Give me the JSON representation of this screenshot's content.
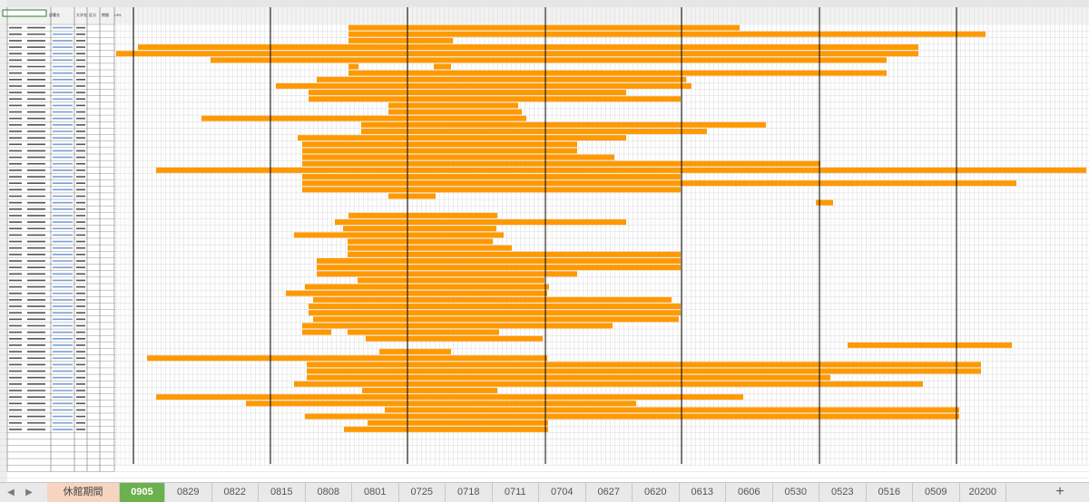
{
  "app": {
    "name": "spreadsheet"
  },
  "sheet": {
    "name_box": "",
    "header_labels": [
      "部署名",
      "大学名",
      "区分",
      "期間",
      "URL"
    ],
    "accent_color": "#ff9900",
    "grid_color": "#d9d9d9",
    "week_line_color": "#000000"
  },
  "tabs": {
    "nav_prev": "◀",
    "nav_next": "▶",
    "items": [
      {
        "label": "休館期間",
        "style": "orange"
      },
      {
        "label": "0905",
        "style": "active"
      },
      {
        "label": "0829",
        "style": "normal"
      },
      {
        "label": "0822",
        "style": "normal"
      },
      {
        "label": "0815",
        "style": "normal"
      },
      {
        "label": "0808",
        "style": "normal"
      },
      {
        "label": "0801",
        "style": "normal"
      },
      {
        "label": "0725",
        "style": "normal"
      },
      {
        "label": "0718",
        "style": "normal"
      },
      {
        "label": "0711",
        "style": "normal"
      },
      {
        "label": "0704",
        "style": "normal"
      },
      {
        "label": "0627",
        "style": "normal"
      },
      {
        "label": "0620",
        "style": "normal"
      },
      {
        "label": "0613",
        "style": "normal"
      },
      {
        "label": "0606",
        "style": "normal"
      },
      {
        "label": "0530",
        "style": "normal"
      },
      {
        "label": "0523",
        "style": "normal"
      },
      {
        "label": "0516",
        "style": "normal"
      },
      {
        "label": "0509",
        "style": "normal"
      },
      {
        "label": "20200",
        "style": "normal"
      }
    ],
    "add_label": "+"
  },
  "closure_rows": [
    [
      [
        384,
        815
      ]
    ],
    [
      [
        384,
        1086
      ]
    ],
    [
      [
        384,
        499
      ]
    ],
    [
      [
        152,
        1012
      ]
    ],
    [
      [
        128,
        1012
      ]
    ],
    [
      [
        232,
        977
      ]
    ],
    [
      [
        384,
        395
      ],
      [
        478,
        497
      ]
    ],
    [
      [
        384,
        977
      ]
    ],
    [
      [
        349,
        756
      ]
    ],
    [
      [
        304,
        762
      ]
    ],
    [
      [
        340,
        690
      ]
    ],
    [
      [
        340,
        750
      ]
    ],
    [
      [
        428,
        571
      ]
    ],
    [
      [
        428,
        575
      ]
    ],
    [
      [
        222,
        580
      ]
    ],
    [
      [
        398,
        844
      ]
    ],
    [
      [
        398,
        779
      ]
    ],
    [
      [
        328,
        690
      ]
    ],
    [
      [
        333,
        636
      ]
    ],
    [
      [
        333,
        636
      ]
    ],
    [
      [
        333,
        677
      ]
    ],
    [
      [
        333,
        904
      ]
    ],
    [
      [
        172,
        1197
      ]
    ],
    [
      [
        333,
        750
      ]
    ],
    [
      [
        333,
        1120
      ]
    ],
    [
      [
        333,
        750
      ]
    ],
    [
      [
        428,
        480
      ]
    ],
    [
      [
        899,
        918
      ]
    ],
    [],
    [
      [
        384,
        548
      ]
    ],
    [
      [
        369,
        690
      ]
    ],
    [
      [
        378,
        547
      ]
    ],
    [
      [
        324,
        555
      ]
    ],
    [
      [
        383,
        543
      ]
    ],
    [
      [
        383,
        564
      ]
    ],
    [
      [
        383,
        750
      ]
    ],
    [
      [
        349,
        750
      ]
    ],
    [
      [
        349,
        750
      ]
    ],
    [
      [
        349,
        636
      ]
    ],
    [
      [
        394,
        600
      ]
    ],
    [
      [
        336,
        605
      ]
    ],
    [
      [
        315,
        603
      ]
    ],
    [
      [
        345,
        740
      ]
    ],
    [
      [
        340,
        750
      ]
    ],
    [
      [
        340,
        750
      ]
    ],
    [
      [
        345,
        748
      ]
    ],
    [
      [
        333,
        675
      ]
    ],
    [
      [
        333,
        365
      ],
      [
        383,
        550
      ]
    ],
    [
      [
        403,
        598
      ]
    ],
    [
      [
        934,
        1115
      ]
    ],
    [
      [
        418,
        497
      ]
    ],
    [
      [
        162,
        603
      ]
    ],
    [
      [
        338,
        1081
      ]
    ],
    [
      [
        338,
        1081
      ]
    ],
    [
      [
        338,
        915
      ]
    ],
    [
      [
        324,
        1017
      ]
    ],
    [
      [
        399,
        548
      ]
    ],
    [
      [
        172,
        819
      ]
    ],
    [
      [
        271,
        701
      ]
    ],
    [
      [
        424,
        1057
      ]
    ],
    [
      [
        336,
        1057
      ]
    ],
    [
      [
        405,
        604
      ]
    ],
    [
      [
        379,
        604
      ]
    ]
  ]
}
